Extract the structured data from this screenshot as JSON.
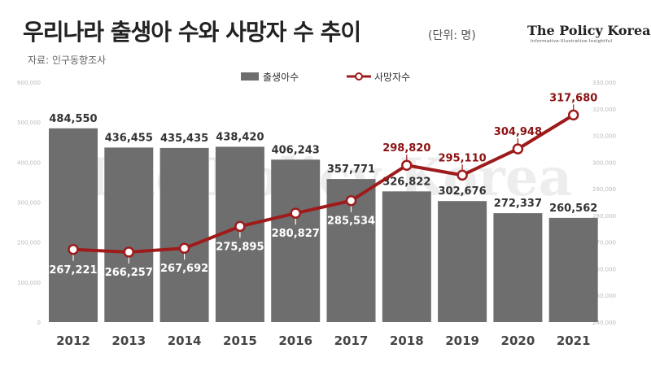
{
  "title": "우리나라 출생아 수와 사망자 수 추이",
  "unit_note": "(단위: 명)",
  "source": "자료: 인구동향조사",
  "logo": {
    "name": "The Policy Korea",
    "tagline": "Informative·Illustrative·Insightful"
  },
  "watermark": "The Policy Korea",
  "colors": {
    "bar": "#6e6e6e",
    "line": "#9e1b1b",
    "bar_label": "#333333",
    "line_label_above": "#8b1212",
    "line_label_inside": "#ffffff"
  },
  "chart_data": {
    "type": "bar",
    "title": "우리나라 출생아 수와 사망자 수 추이",
    "categories": [
      "2012",
      "2013",
      "2014",
      "2015",
      "2016",
      "2017",
      "2018",
      "2019",
      "2020",
      "2021"
    ],
    "series": [
      {
        "name": "출생아수",
        "type": "bar",
        "axis": "left",
        "values": [
          484550,
          436455,
          435435,
          438420,
          406243,
          357771,
          326822,
          302676,
          272337,
          260562
        ],
        "labels": [
          "484,550",
          "436,455",
          "435,435",
          "438,420",
          "406,243",
          "357,771",
          "326,822",
          "302,676",
          "272,337",
          "260,562"
        ]
      },
      {
        "name": "사망자수",
        "type": "line",
        "axis": "right",
        "values": [
          267221,
          266257,
          267692,
          275895,
          280827,
          285534,
          298820,
          295110,
          304948,
          317680
        ],
        "labels": [
          "267,221",
          "266,257",
          "267,692",
          "275,895",
          "280,827",
          "285,534",
          "298,820",
          "295,110",
          "304,948",
          "317,680"
        ]
      }
    ],
    "left_axis": {
      "ylim": [
        0,
        600000
      ],
      "ticks": [
        0,
        100000,
        200000,
        300000,
        400000,
        500000,
        600000
      ],
      "tick_labels": [
        "0",
        "100,000",
        "200,000",
        "300,000",
        "400,000",
        "500,000",
        "600,000"
      ]
    },
    "right_axis": {
      "ylim": [
        240000,
        330000
      ],
      "ticks": [
        240000,
        250000,
        260000,
        270000,
        280000,
        290000,
        300000,
        310000,
        320000,
        330000
      ],
      "tick_labels": [
        "240,000",
        "250,000",
        "260,000",
        "270,000",
        "280,000",
        "290,000",
        "300,000",
        "310,000",
        "320,000",
        "330,000"
      ]
    },
    "legend": {
      "position": "top-center",
      "entries": [
        "출생아수",
        "사망자수"
      ]
    },
    "grid": false
  }
}
